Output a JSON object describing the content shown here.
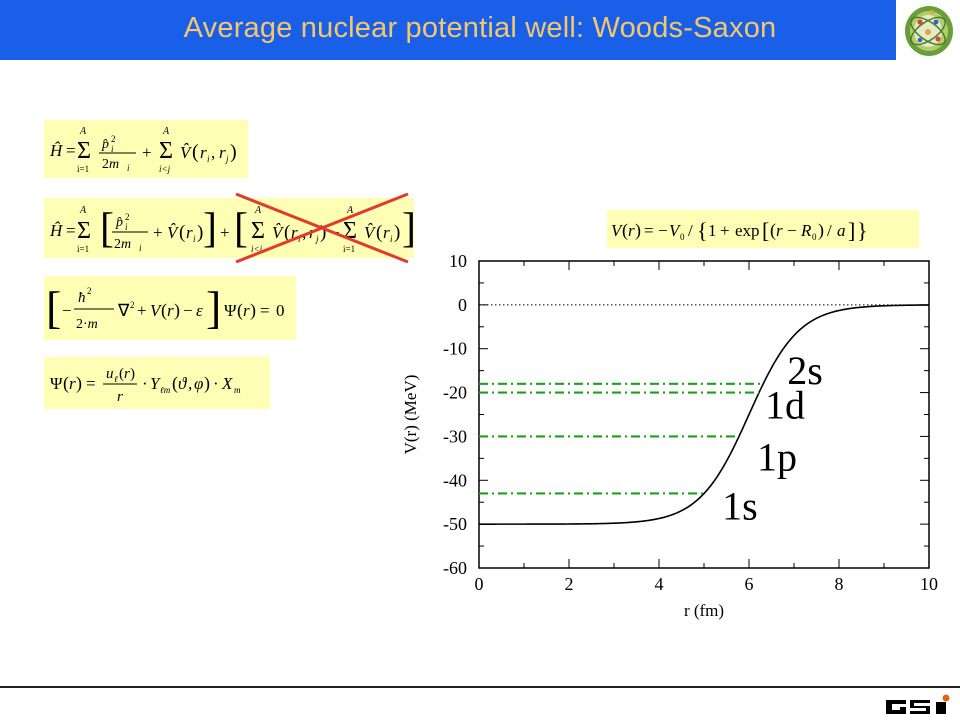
{
  "slide": {
    "title": "Average nuclear potential well: Woods-Saxon",
    "colors": {
      "title_bar": "#1a5fe8",
      "title_text": "#f5c76b",
      "formula_bg": "#fefeb4",
      "cross": "#e23b2e",
      "levels": "#1ea01e"
    },
    "logo_icon": "nucleus-logo-icon",
    "footer_logo": "GSI"
  },
  "formulas": [
    {
      "text": "Ĥ = Σ_{i=1}^{A} p̂_i² / 2m_i + Σ_{i<j}^{A} V̂(r_i, r_j)"
    },
    {
      "text": "Ĥ = Σ_{i=1}^{A} [ p̂_i² / 2m_i + V̂(r_i) ] + [ Σ_{i<j}^{A} V̂(r_i, r_j) − Σ_{i=1}^{A} V̂(r_i) ]",
      "crossed_out": true
    },
    {
      "text": "[ −ħ² / 2·m ∇² + V(r) − ε ] Ψ(r) = 0"
    },
    {
      "text": "Ψ(r) = u_ℓ(r) / r · Y_ℓm(ϑ,φ) · X_m"
    },
    {
      "text": "V(r) = −V_0 / {1 + exp[(r − R_0) / a]}"
    }
  ],
  "chart_data": {
    "type": "line",
    "xlabel": "r   (fm)",
    "ylabel": "V(r)   (MeV)",
    "xlim": [
      0,
      10
    ],
    "ylim": [
      -60,
      10
    ],
    "xticks": [
      0,
      2,
      4,
      6,
      8,
      10
    ],
    "yticks": [
      10,
      0,
      -10,
      -20,
      -30,
      -40,
      -50,
      -60
    ],
    "grid": false,
    "potential": {
      "V0": 50,
      "R0": 6.0,
      "a": 0.55
    },
    "zero_line": {
      "y": 0,
      "style": "dotted"
    },
    "levels": [
      {
        "label": "2s",
        "energy": -18
      },
      {
        "label": "1d",
        "energy": -20
      },
      {
        "label": "1p",
        "energy": -30
      },
      {
        "label": "1s",
        "energy": -43
      }
    ]
  }
}
